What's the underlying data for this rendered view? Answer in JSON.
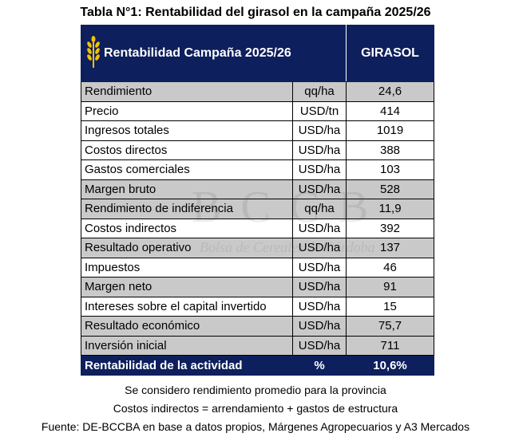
{
  "title": "Tabla N°1: Rentabilidad del girasol en la campaña 2025/26",
  "header": {
    "label": "Rentabilidad Campaña 2025/26",
    "crop": "GIRASOL"
  },
  "rows": [
    {
      "concept": "Rendimiento",
      "unit": "qq/ha",
      "value": "24,6",
      "shade": "gray"
    },
    {
      "concept": "Precio",
      "unit": "USD/tn",
      "value": "414",
      "shade": "white"
    },
    {
      "concept": "Ingresos totales",
      "unit": "USD/ha",
      "value": "1019",
      "shade": "white"
    },
    {
      "concept": "Costos directos",
      "unit": "USD/ha",
      "value": "388",
      "shade": "white"
    },
    {
      "concept": "Gastos comerciales",
      "unit": "USD/ha",
      "value": "103",
      "shade": "white"
    },
    {
      "concept": "Margen bruto",
      "unit": "USD/ha",
      "value": "528",
      "shade": "gray"
    },
    {
      "concept": "Rendimiento de indiferencia",
      "unit": "qq/ha",
      "value": "11,9",
      "shade": "gray"
    },
    {
      "concept": "Costos indirectos",
      "unit": "USD/ha",
      "value": "392",
      "shade": "white"
    },
    {
      "concept": "Resultado operativo",
      "unit": "USD/ha",
      "value": "137",
      "shade": "gray"
    },
    {
      "concept": "Impuestos",
      "unit": "USD/ha",
      "value": "46",
      "shade": "white"
    },
    {
      "concept": "Margen neto",
      "unit": "USD/ha",
      "value": "91",
      "shade": "gray"
    },
    {
      "concept": "Intereses sobre el capital invertido",
      "unit": "USD/ha",
      "value": "15",
      "shade": "white"
    },
    {
      "concept": "Resultado económico",
      "unit": "USD/ha",
      "value": "75,7",
      "shade": "gray"
    },
    {
      "concept": "Inversión inicial",
      "unit": "USD/ha",
      "value": "711",
      "shade": "gray"
    }
  ],
  "footer": {
    "concept": "Rentabilidad de la actividad",
    "unit": "%",
    "value": "10,6%"
  },
  "watermark": {
    "big": "BCCB",
    "small": "Bolsa de Cereales de Córdoba"
  },
  "notes": {
    "line1": "Se considero rendimiento promedio para la provincia",
    "line2": "Costos indirectos = arrendamiento + gastos de estructura",
    "line3": "Fuente: DE-BCCBA en base a datos propios, Márgenes Agropecuarios y A3 Mercados"
  },
  "colors": {
    "header_bg": "#0d1f5c",
    "gray_row": "#c9c9c9",
    "wheat_icon": "#f2c200"
  }
}
